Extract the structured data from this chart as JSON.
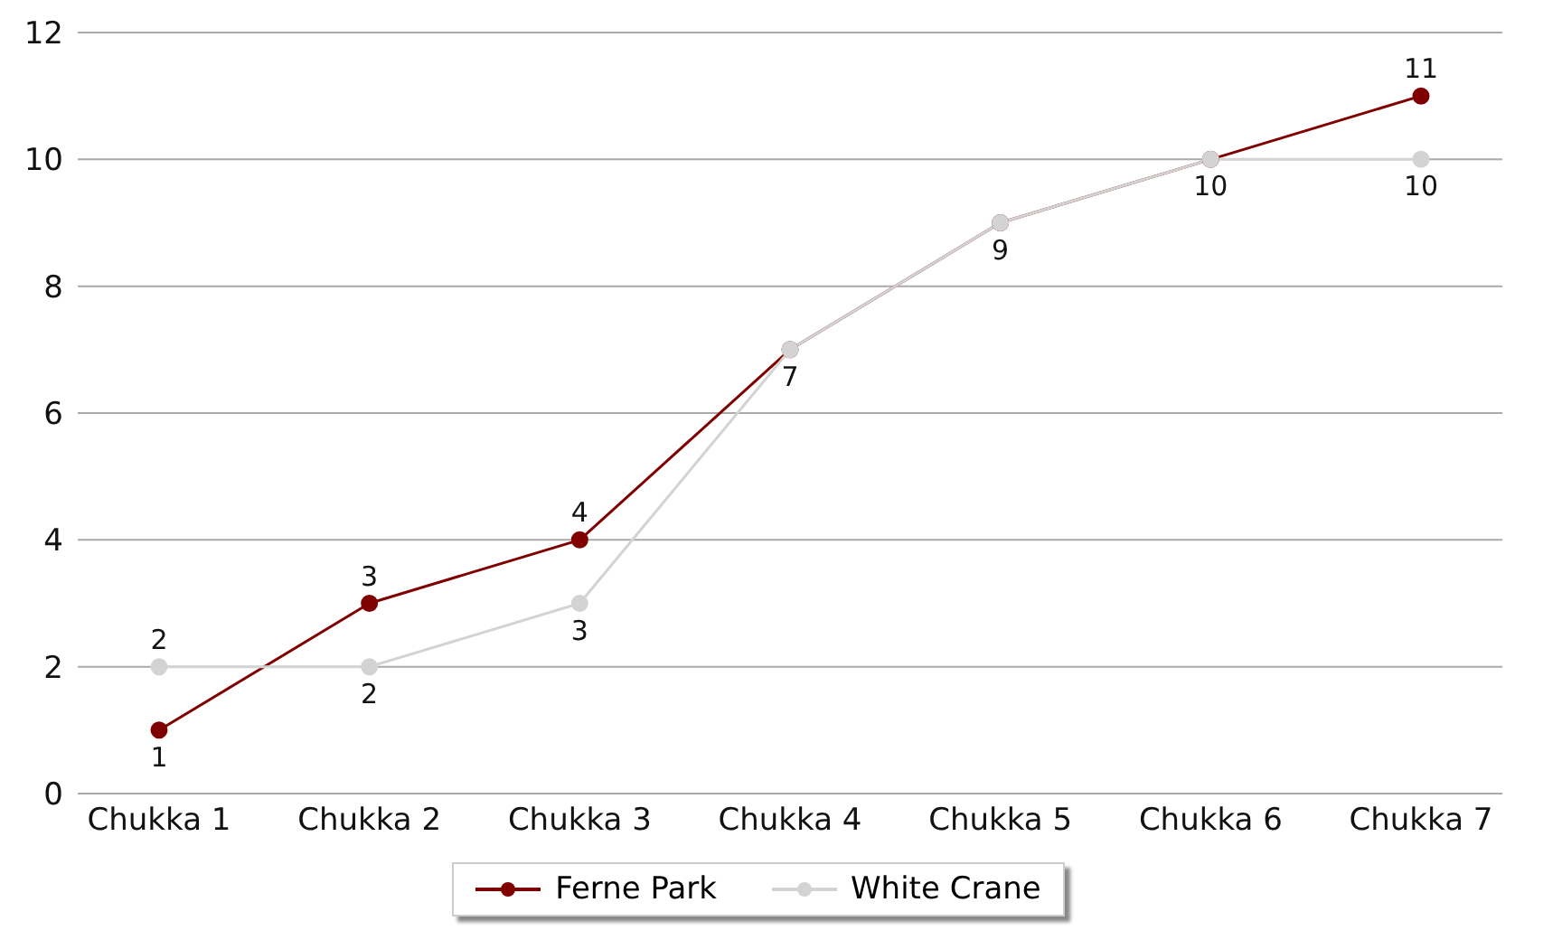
{
  "chart_data": {
    "type": "line",
    "categories": [
      "Chukka 1",
      "Chukka 2",
      "Chukka 3",
      "Chukka 4",
      "Chukka 5",
      "Chukka 6",
      "Chukka 7"
    ],
    "series": [
      {
        "name": "Ferne Park",
        "color": "#800000",
        "values": [
          1,
          3,
          4,
          7,
          9,
          10,
          11
        ],
        "value_labels": [
          "1",
          "3",
          "4",
          null,
          null,
          null,
          "11"
        ]
      },
      {
        "name": "White Crane",
        "color": "#d3d3d3",
        "values": [
          2,
          2,
          3,
          7,
          9,
          10,
          10
        ],
        "value_labels": [
          "2",
          "2",
          "3",
          "7",
          "9",
          "10",
          "10"
        ]
      }
    ],
    "ylim": [
      0,
      12
    ],
    "yticks": [
      0,
      2,
      4,
      6,
      8,
      10,
      12
    ],
    "grid": "y",
    "legend": "bottom",
    "marker": "circle",
    "line_style": "solid"
  }
}
